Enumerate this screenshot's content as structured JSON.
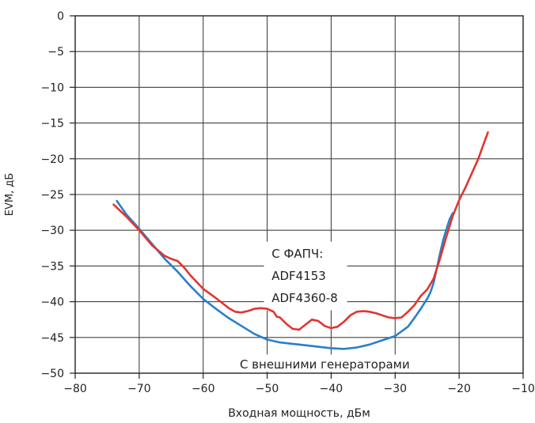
{
  "chart_data": {
    "type": "line",
    "xlabel": "Входная мощность, дБм",
    "ylabel": "EVM, дБ",
    "xlim": [
      -80,
      -10
    ],
    "ylim": [
      -50,
      0
    ],
    "x_ticks": [
      -80,
      -70,
      -60,
      -50,
      -40,
      -30,
      -20,
      -10
    ],
    "y_ticks": [
      0,
      -5,
      -10,
      -15,
      -20,
      -25,
      -30,
      -35,
      -40,
      -45,
      -50
    ],
    "x_tick_labels": [
      "−80",
      "−70",
      "−60",
      "−50",
      "−40",
      "−30",
      "−20",
      "−10"
    ],
    "y_tick_labels": [
      "0",
      "−5",
      "−10",
      "−15",
      "−20",
      "−25",
      "−30",
      "−35",
      "−40",
      "−45",
      "−50"
    ],
    "grid": true,
    "series": [
      {
        "color": "#2a7fc9",
        "x": [
          -73.5,
          -72,
          -70,
          -68,
          -66,
          -64,
          -62,
          -60,
          -58,
          -56,
          -54,
          -52,
          -50,
          -48,
          -46,
          -44,
          -42,
          -40,
          -38,
          -36,
          -34,
          -32,
          -30,
          -28,
          -27,
          -26,
          -25,
          -24.5,
          -24,
          -23.5,
          -23,
          -22.5,
          -22,
          -21.5,
          -21
        ],
        "y": [
          -25.9,
          -27.8,
          -29.8,
          -31.9,
          -34.0,
          -35.8,
          -37.8,
          -39.6,
          -41.0,
          -42.3,
          -43.4,
          -44.5,
          -45.3,
          -45.7,
          -45.9,
          -46.1,
          -46.3,
          -46.5,
          -46.6,
          -46.4,
          -46.0,
          -45.4,
          -44.8,
          -43.5,
          -42.3,
          -41.0,
          -39.6,
          -38.7,
          -37.4,
          -35.4,
          -33.3,
          -31.4,
          -29.9,
          -28.5,
          -27.6
        ]
      },
      {
        "color": "#e2352f",
        "x": [
          -74,
          -72,
          -70,
          -68,
          -66,
          -65,
          -64,
          -63,
          -62,
          -60,
          -58,
          -56,
          -55,
          -54,
          -53,
          -52,
          -51,
          -50,
          -49,
          -48.5,
          -48,
          -47,
          -46,
          -45,
          -44,
          -43,
          -42,
          -41,
          -40,
          -39,
          -38,
          -37,
          -36,
          -35,
          -34,
          -33,
          -32,
          -31,
          -30,
          -29,
          -28,
          -27,
          -26,
          -25,
          -24,
          -23,
          -22,
          -21,
          -20,
          -19,
          -18,
          -17,
          -16,
          -15.5
        ],
        "y": [
          -26.4,
          -28.1,
          -30.0,
          -32.1,
          -33.6,
          -34.0,
          -34.3,
          -35.2,
          -36.3,
          -38.2,
          -39.5,
          -40.9,
          -41.4,
          -41.5,
          -41.3,
          -41.0,
          -40.9,
          -41.0,
          -41.4,
          -42.1,
          -42.2,
          -43.1,
          -43.8,
          -43.9,
          -43.2,
          -42.5,
          -42.7,
          -43.4,
          -43.7,
          -43.5,
          -42.8,
          -41.9,
          -41.4,
          -41.3,
          -41.4,
          -41.6,
          -41.9,
          -42.2,
          -42.3,
          -42.2,
          -41.4,
          -40.5,
          -39.2,
          -38.3,
          -36.8,
          -34.0,
          -30.9,
          -28.0,
          -25.8,
          -24.0,
          -22.0,
          -20.0,
          -17.5,
          -16.3
        ]
      }
    ],
    "annotations": [
      {
        "text": "С ФАПЧ:",
        "x": -44,
        "y": -33.3
      },
      {
        "text": "ADF4153",
        "x": -44,
        "y": -36.4
      },
      {
        "text": "ADF4360-8",
        "x": -44,
        "y": -39.5
      },
      {
        "text": "С внешними генераторами",
        "x": -41,
        "y": -48.8
      }
    ]
  }
}
